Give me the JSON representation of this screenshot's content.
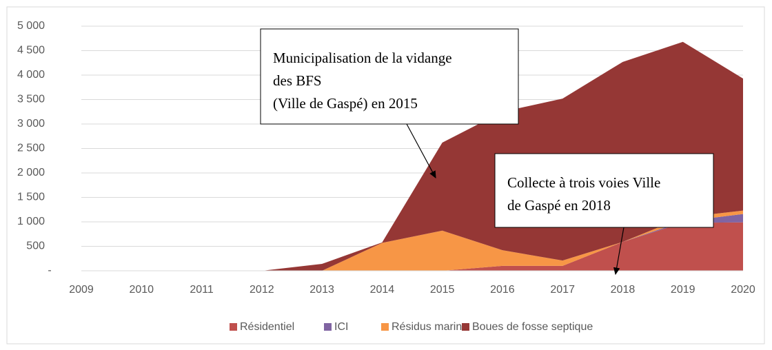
{
  "chart_data": {
    "type": "stacked_area",
    "categories": [
      "2009",
      "2010",
      "2011",
      "2012",
      "2013",
      "2014",
      "2015",
      "2016",
      "2017",
      "2018",
      "2019",
      "2020"
    ],
    "series": [
      {
        "name": "Résidentiel",
        "color": "#c0504d",
        "values": [
          0,
          0,
          0,
          0,
          0,
          0,
          0,
          100,
          100,
          590,
          980,
          990
        ]
      },
      {
        "name": "ICI",
        "color": "#8064a2",
        "values": [
          0,
          0,
          0,
          0,
          0,
          0,
          0,
          0,
          0,
          0,
          30,
          170
        ]
      },
      {
        "name": "Résidus marins",
        "color": "#f79646",
        "values": [
          0,
          0,
          0,
          0,
          0,
          570,
          820,
          320,
          110,
          0,
          80,
          70
        ]
      },
      {
        "name": "Boues de fosse septique",
        "color": "#953735",
        "values": [
          0,
          0,
          0,
          0,
          140,
          10,
          1800,
          2830,
          3310,
          3680,
          3590,
          2700
        ]
      }
    ],
    "ylim": [
      0,
      5000
    ],
    "yticks": [
      {
        "value": 0,
        "label": "-"
      },
      500,
      {
        "value": 1000,
        "label": "1 000"
      },
      {
        "value": 1500,
        "label": "1 500"
      },
      {
        "value": 2000,
        "label": "2 000"
      },
      {
        "value": 2500,
        "label": "2 500"
      },
      {
        "value": 3000,
        "label": "3 000"
      },
      {
        "value": 3500,
        "label": "3 500"
      },
      {
        "value": 4000,
        "label": "4 000"
      },
      {
        "value": 4500,
        "label": "4 500"
      },
      {
        "value": 5000,
        "label": "5 000"
      }
    ],
    "grid": true,
    "legend": "bottom",
    "annotations": [
      {
        "lines": [
          "Municipalisation de la vidange",
          "des BFS",
          "(Ville de Gaspé) en 2015"
        ]
      },
      {
        "lines": [
          "Collecte à trois voies Ville",
          "de Gaspé en 2018"
        ]
      }
    ]
  }
}
